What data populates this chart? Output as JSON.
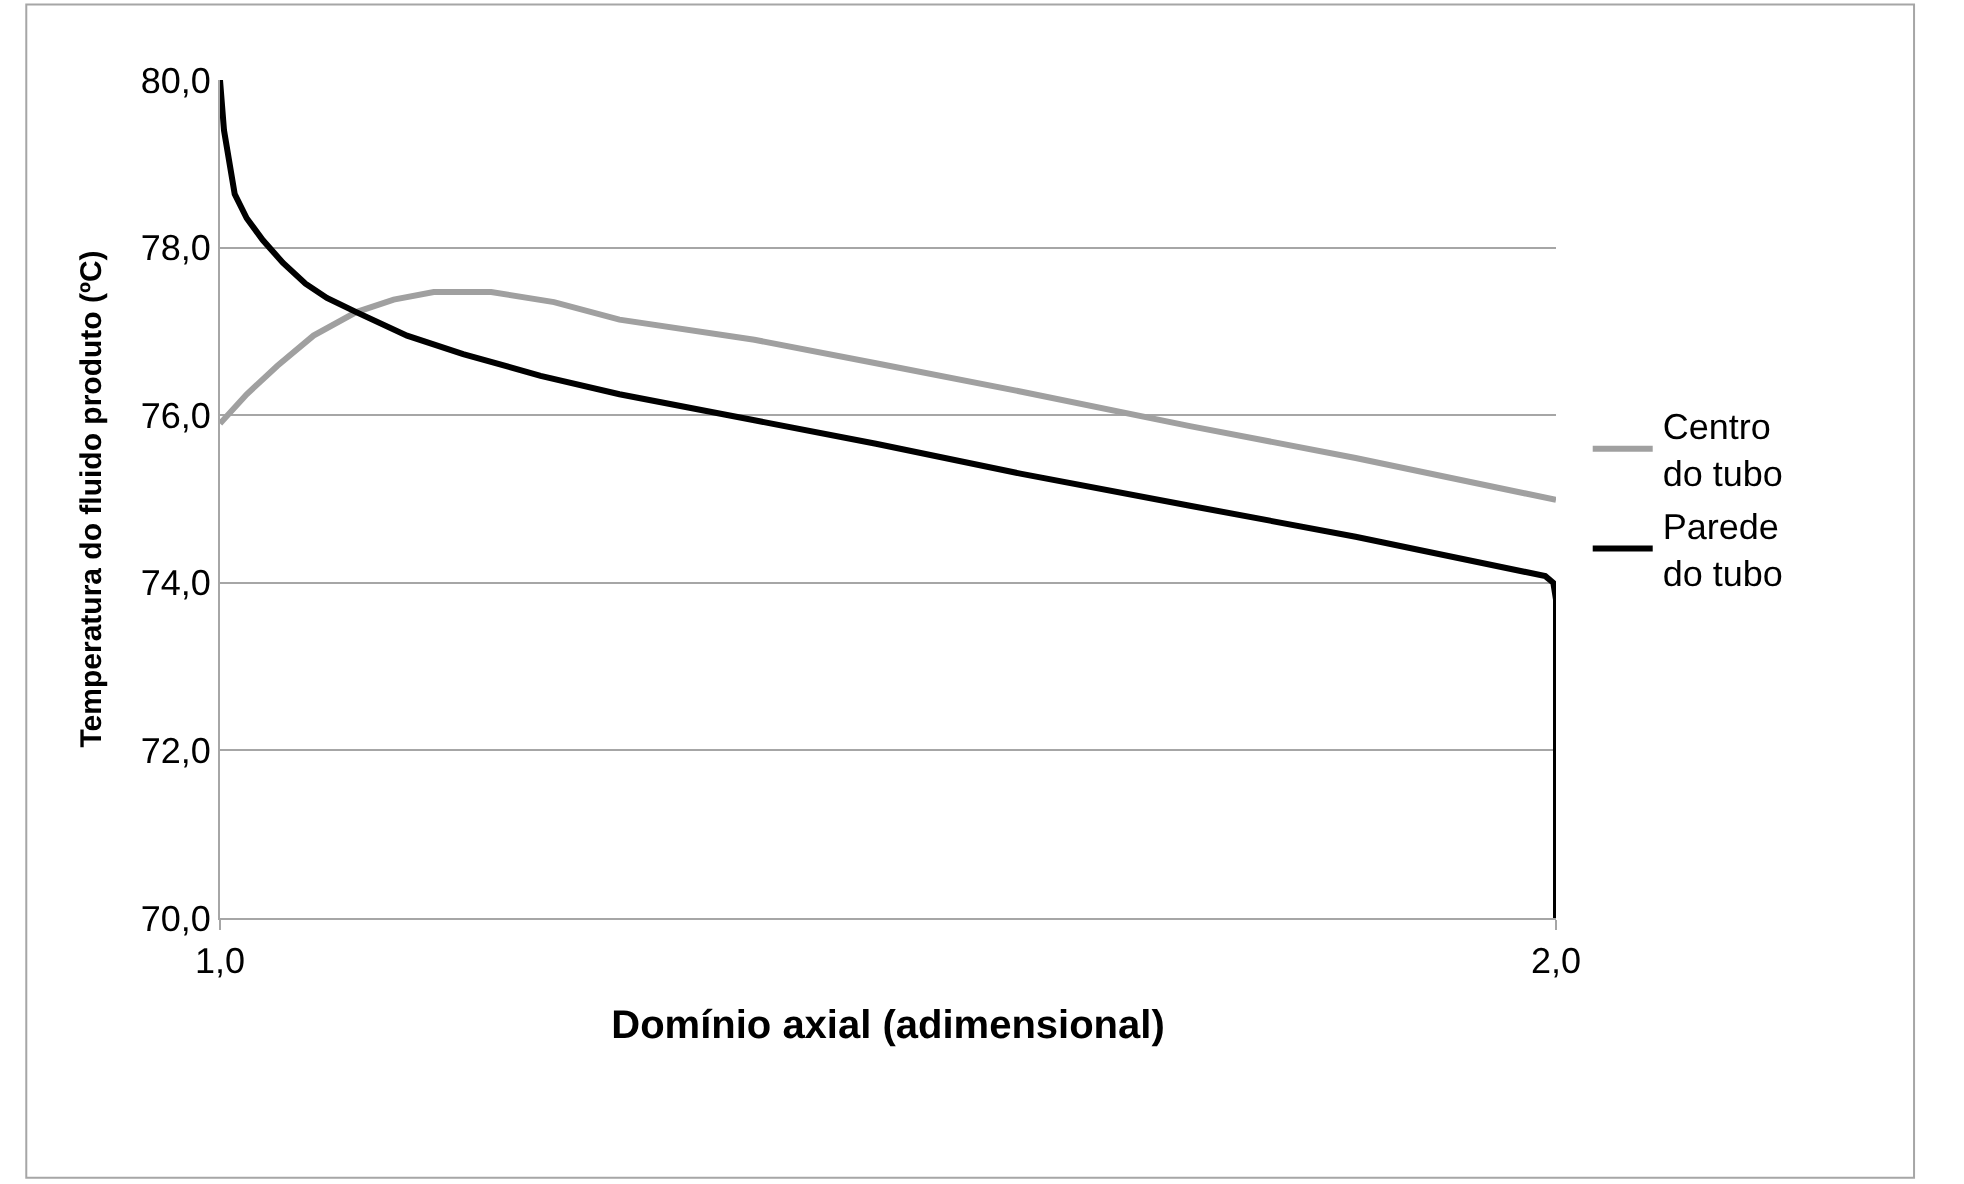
{
  "chart_data": {
    "type": "line",
    "xlabel": "Domínio axial (adimensional)",
    "ylabel": "Temperatura do fluido produto (ºC)",
    "xlim": [
      1,
      2
    ],
    "xticks": [
      {
        "value": 1,
        "label": "1,0"
      },
      {
        "value": 2,
        "label": "2,0"
      }
    ],
    "ylim": [
      70,
      80
    ],
    "yticks": [
      {
        "value": 70,
        "label": "70,0"
      },
      {
        "value": 72,
        "label": "72,0"
      },
      {
        "value": 74,
        "label": "74,0"
      },
      {
        "value": 76,
        "label": "76,0"
      },
      {
        "value": 78,
        "label": "78,0"
      },
      {
        "value": 80,
        "label": "80,0"
      }
    ],
    "grid": "y",
    "legend": "right",
    "marker": "none",
    "line_style": "solid",
    "series": [
      {
        "name": "Centro do tubo",
        "color": "#a0a0a0",
        "x": [
          1.0,
          1.02,
          1.043,
          1.07,
          1.102,
          1.13,
          1.16,
          1.203,
          1.25,
          1.299,
          1.4,
          1.491,
          1.6,
          1.726,
          1.85,
          2.0
        ],
        "values": [
          75.9,
          76.25,
          76.59,
          76.95,
          77.23,
          77.38,
          77.47,
          77.47,
          77.35,
          77.14,
          76.9,
          76.62,
          76.28,
          75.87,
          75.49,
          74.99
        ]
      },
      {
        "name": "Parede do tubo",
        "color": "#000000",
        "x": [
          1.0,
          1.003,
          1.011,
          1.02,
          1.032,
          1.047,
          1.064,
          1.08,
          1.102,
          1.14,
          1.182,
          1.24,
          1.299,
          1.4,
          1.491,
          1.6,
          1.726,
          1.85,
          1.992,
          1.998,
          2.0,
          2.0
        ],
        "values": [
          80.0,
          79.4,
          78.64,
          78.35,
          78.09,
          77.82,
          77.57,
          77.4,
          77.23,
          76.95,
          76.73,
          76.47,
          76.25,
          75.94,
          75.66,
          75.3,
          74.92,
          74.55,
          74.08,
          74.0,
          73.8,
          70.0
        ]
      }
    ]
  }
}
